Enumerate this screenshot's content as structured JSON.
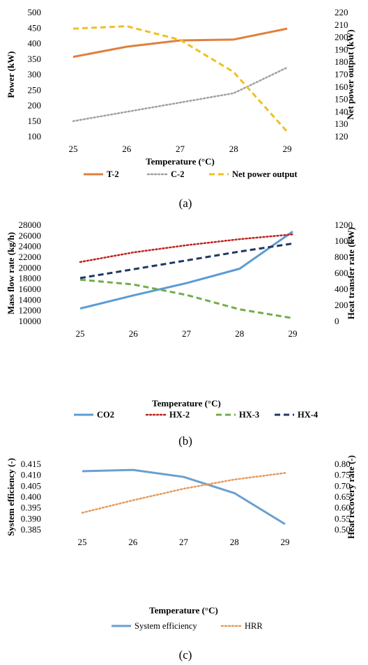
{
  "figure": {
    "captions": [
      "(a)",
      "(b)",
      "(c)"
    ]
  },
  "chart_data": [
    {
      "type": "line",
      "x": [
        25,
        26,
        27,
        28,
        29
      ],
      "xlabel": "Temperature (°C)",
      "ylabel_left": "Power (kW)",
      "ylabel_right": "Net power output (kW)",
      "ylim_left": [
        100,
        500
      ],
      "ylim_right": [
        120,
        220
      ],
      "yticks_left": [
        100,
        150,
        200,
        250,
        300,
        350,
        400,
        450,
        500
      ],
      "yticks_right": [
        120,
        130,
        140,
        150,
        160,
        170,
        180,
        190,
        200,
        210,
        220
      ],
      "grid": false,
      "legend": "bottom",
      "series": [
        {
          "name": "T-2",
          "axis": "left",
          "color": "#e07f3d",
          "style": "solid",
          "values": [
            357,
            390,
            410,
            413,
            448
          ]
        },
        {
          "name": "C-2",
          "axis": "left",
          "color": "#a0a0a0",
          "style": "dotted",
          "values": [
            150,
            180,
            210,
            240,
            323
          ]
        },
        {
          "name": "Net power output",
          "axis": "right",
          "color": "#f0c020",
          "style": "dashed",
          "values": [
            207,
            209,
            198,
            172,
            124
          ]
        }
      ]
    },
    {
      "type": "line",
      "x": [
        25,
        26,
        27,
        28,
        29
      ],
      "xlabel": "Temperature (°C)",
      "ylabel_left": "Mass flow rate (kg/h)",
      "ylabel_right": "Heat transfer rate (kW)",
      "ylim_left": [
        10000,
        28000
      ],
      "ylim_right": [
        0,
        1200
      ],
      "yticks_left": [
        10000,
        12000,
        14000,
        16000,
        18000,
        20000,
        22000,
        24000,
        26000,
        28000
      ],
      "yticks_right": [
        0,
        200,
        400,
        600,
        800,
        1000,
        1200
      ],
      "grid": false,
      "legend": "bottom",
      "series": [
        {
          "name": "CO2",
          "axis": "left",
          "color": "#5b9bd5",
          "style": "solid",
          "values": [
            12400,
            14850,
            17150,
            19850,
            26800
          ]
        },
        {
          "name": "HX-2",
          "axis": "right",
          "color": "#c0201c",
          "style": "dotted",
          "values": [
            740,
            860,
            950,
            1025,
            1085
          ]
        },
        {
          "name": "HX-3",
          "axis": "right",
          "color": "#70ad47",
          "style": "dashed",
          "values": [
            520,
            460,
            330,
            150,
            40
          ]
        },
        {
          "name": "HX-4",
          "axis": "right",
          "color": "#1f3864",
          "style": "dashed",
          "values": [
            540,
            650,
            760,
            870,
            970
          ]
        }
      ]
    },
    {
      "type": "line",
      "x": [
        25,
        26,
        27,
        28,
        29
      ],
      "xlabel": "Temperature (°C)",
      "ylabel_left": "System efficiency (-)",
      "ylabel_right": "Heat recovery rate (-)",
      "ylim_left": [
        0.385,
        0.415
      ],
      "ylim_right": [
        0.5,
        0.8
      ],
      "yticks_left": [
        "0.385",
        "0.390",
        "0.395",
        "0.400",
        "0.405",
        "0.410",
        "0.415"
      ],
      "yticks_right": [
        "0.50",
        "0.55",
        "0.60",
        "0.65",
        "0.70",
        "0.75",
        "0.80"
      ],
      "grid": false,
      "legend": "bottom",
      "series": [
        {
          "name": "System efficiency",
          "axis": "left",
          "color": "#6a9fcf",
          "style": "solid",
          "values": [
            0.4118,
            0.4124,
            0.4092,
            0.4018,
            0.3876
          ]
        },
        {
          "name": "HRR",
          "axis": "right",
          "color": "#e39a5c",
          "style": "dotted",
          "values": [
            0.578,
            0.635,
            0.688,
            0.73,
            0.76
          ]
        }
      ]
    }
  ]
}
